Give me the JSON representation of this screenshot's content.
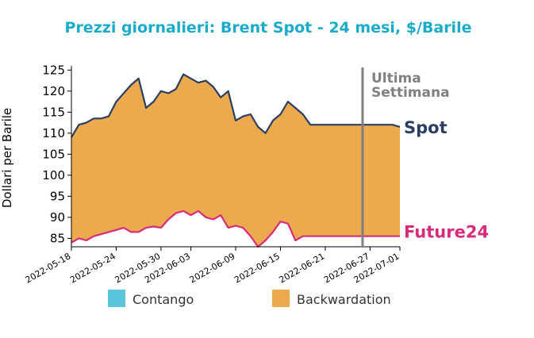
{
  "chart_data": {
    "type": "area",
    "title": "Prezzi giornalieri: Brent Spot - 24 mesi, $/Barile",
    "ylabel": "Dollari per Barile",
    "xlabel": "",
    "ylim": [
      83,
      126
    ],
    "yticks": [
      85,
      90,
      95,
      100,
      105,
      110,
      115,
      120,
      125
    ],
    "x_range": [
      "2022-05-18",
      "2022-07-01"
    ],
    "xticks": [
      "2022-05-18",
      "2022-05-24",
      "2022-05-30",
      "2022-06-03",
      "2022-06-09",
      "2022-06-15",
      "2022-06-21",
      "2022-06-27",
      "2022-07-01"
    ],
    "x": [
      "2022-05-18",
      "2022-05-19",
      "2022-05-20",
      "2022-05-21",
      "2022-05-22",
      "2022-05-23",
      "2022-05-24",
      "2022-05-25",
      "2022-05-26",
      "2022-05-27",
      "2022-05-28",
      "2022-05-29",
      "2022-05-30",
      "2022-05-31",
      "2022-06-01",
      "2022-06-02",
      "2022-06-03",
      "2022-06-04",
      "2022-06-05",
      "2022-06-06",
      "2022-06-07",
      "2022-06-08",
      "2022-06-09",
      "2022-06-10",
      "2022-06-11",
      "2022-06-12",
      "2022-06-13",
      "2022-06-14",
      "2022-06-15",
      "2022-06-16",
      "2022-06-17",
      "2022-06-18",
      "2022-06-19",
      "2022-06-20",
      "2022-06-21",
      "2022-06-22",
      "2022-06-23",
      "2022-06-24",
      "2022-06-25",
      "2022-06-26",
      "2022-06-27",
      "2022-06-28",
      "2022-06-29",
      "2022-06-30",
      "2022-07-01"
    ],
    "series": [
      {
        "name": "Spot",
        "color": "#2c3e63",
        "values": [
          109,
          112,
          112.5,
          113.5,
          113.5,
          114,
          117.5,
          119.5,
          121.5,
          123,
          116,
          117.5,
          120,
          119.5,
          120.5,
          124,
          123,
          122,
          122.5,
          121,
          118.5,
          120,
          113,
          114,
          114.5,
          111.5,
          110,
          113,
          114.5,
          117.5,
          116,
          114.5,
          112,
          112,
          112,
          112,
          112,
          112,
          112,
          112,
          112,
          112,
          112,
          112,
          111.5
        ]
      },
      {
        "name": "Future24",
        "color": "#d62c7a",
        "values": [
          84,
          85,
          84.5,
          85.5,
          86,
          86.5,
          87,
          87.5,
          86.5,
          86.5,
          87.5,
          87.8,
          87.5,
          89.5,
          91,
          91.5,
          90.5,
          91.5,
          90,
          89.5,
          90.5,
          87.5,
          88,
          87.5,
          85.5,
          83,
          84.5,
          86.5,
          89,
          88.5,
          84.5,
          85.5,
          85.5,
          85.5,
          85.5,
          85.5,
          85.5,
          85.5,
          85.5,
          85.5,
          85.5,
          85.5,
          85.5,
          85.5,
          85.5
        ]
      }
    ],
    "fill_color": "#ebaa4d",
    "vertical_line": {
      "x": "2022-06-26",
      "label": "Ultima\nSettimana",
      "color": "#808080"
    },
    "legend": {
      "placement": "bottom",
      "items": [
        {
          "label": "Contango",
          "color": "#5bc5dc"
        },
        {
          "label": "Backwardation",
          "color": "#ebaa4d"
        }
      ]
    },
    "grid": false
  }
}
